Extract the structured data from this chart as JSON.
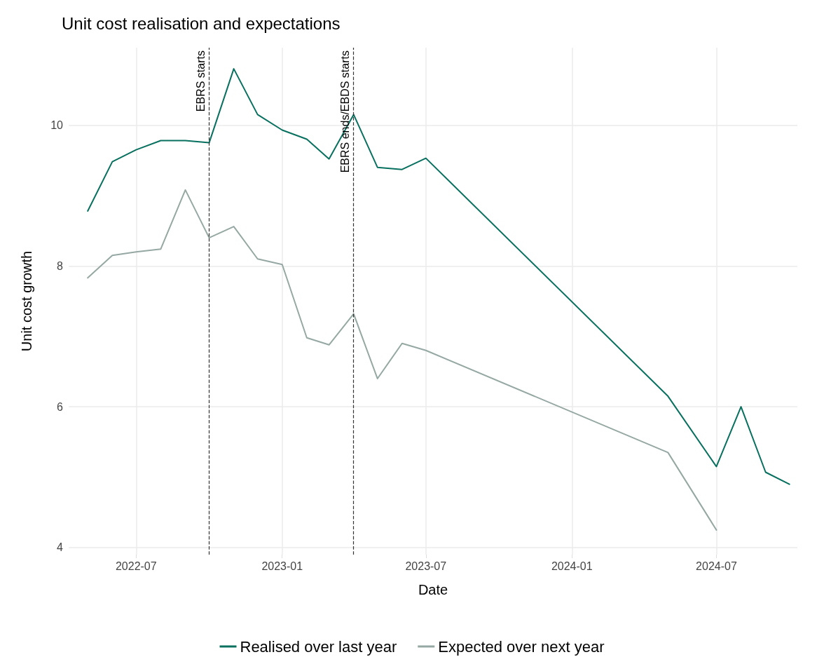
{
  "chart_data": {
    "type": "line",
    "title": "Unit cost realisation and expectations",
    "xlabel": "Date",
    "ylabel": "Unit cost growth",
    "x": [
      "2022-05",
      "2022-06",
      "2022-07",
      "2022-08",
      "2022-09",
      "2022-10",
      "2022-11",
      "2022-12",
      "2023-01",
      "2023-02",
      "2023-03",
      "2023-04",
      "2023-05",
      "2023-06",
      "2023-07",
      "2024-05",
      "2024-07",
      "2024-08",
      "2024-09",
      "2024-10"
    ],
    "series": [
      {
        "name": "Realised over last year",
        "color": "#08705f",
        "values": [
          8.78,
          9.48,
          9.65,
          9.78,
          9.78,
          9.75,
          10.8,
          10.15,
          9.93,
          9.8,
          9.52,
          10.15,
          9.4,
          9.37,
          9.53,
          6.15,
          5.15,
          6.0,
          5.07,
          4.9
        ]
      },
      {
        "name": "Expected over next year",
        "color": "#95a8a3",
        "values": [
          7.83,
          8.15,
          8.2,
          8.24,
          9.08,
          8.4,
          8.56,
          8.1,
          8.02,
          6.98,
          6.88,
          7.32,
          6.4,
          6.9,
          6.8,
          5.35,
          4.25,
          null,
          null,
          null
        ]
      }
    ],
    "xlim": [
      "2022-04-07",
      "2024-10-11"
    ],
    "xticks": [
      {
        "value": "2022-07",
        "label": "2022-07"
      },
      {
        "value": "2023-01",
        "label": "2023-01"
      },
      {
        "value": "2023-07",
        "label": "2023-07"
      },
      {
        "value": "2024-01",
        "label": "2024-01"
      },
      {
        "value": "2024-07",
        "label": "2024-07"
      }
    ],
    "ylim": [
      3.9,
      11.1
    ],
    "yticks": [
      4,
      6,
      8,
      10
    ],
    "ref_lines": [
      {
        "axis": "x",
        "value": "2022-10",
        "label": "EBRS starts",
        "line_style": "dashed",
        "color": "#333333"
      },
      {
        "axis": "x",
        "value": "2023-04",
        "label": "EBRS ends/EBDS starts",
        "line_style": "dashed",
        "color": "#333333"
      }
    ],
    "grid": true,
    "legend": "bottom",
    "line_style": "solid",
    "marker": "none"
  }
}
